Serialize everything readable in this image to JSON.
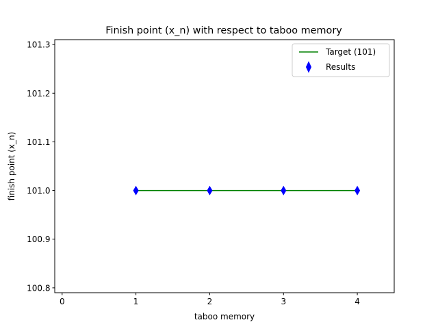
{
  "chart_data": {
    "type": "scatter",
    "title": "Finish point (x_n) with respect to taboo memory",
    "xlabel": "taboo memory",
    "ylabel": "finish point (x_n)",
    "xlim": [
      -0.1,
      4.5
    ],
    "ylim": [
      100.79,
      101.31
    ],
    "x_ticks": [
      0,
      1,
      2,
      3,
      4
    ],
    "x_tick_labels": [
      "0",
      "1",
      "2",
      "3",
      "4"
    ],
    "y_ticks": [
      100.8,
      100.9,
      101.0,
      101.1,
      101.2,
      101.3
    ],
    "y_tick_labels": [
      "100.8",
      "100.9",
      "101.0",
      "101.1",
      "101.2",
      "101.3"
    ],
    "grid": false,
    "legend_position": "top-right",
    "series": [
      {
        "name": "Target (101)",
        "kind": "line",
        "color": "#008000",
        "x": [
          1,
          2,
          3,
          4
        ],
        "y": [
          101,
          101,
          101,
          101
        ]
      },
      {
        "name": "Results",
        "kind": "scatter",
        "marker": "thin-diamond",
        "color": "#0000ff",
        "x": [
          1,
          2,
          3,
          4
        ],
        "y": [
          101.0,
          101.0,
          101.0,
          101.0
        ]
      }
    ]
  }
}
